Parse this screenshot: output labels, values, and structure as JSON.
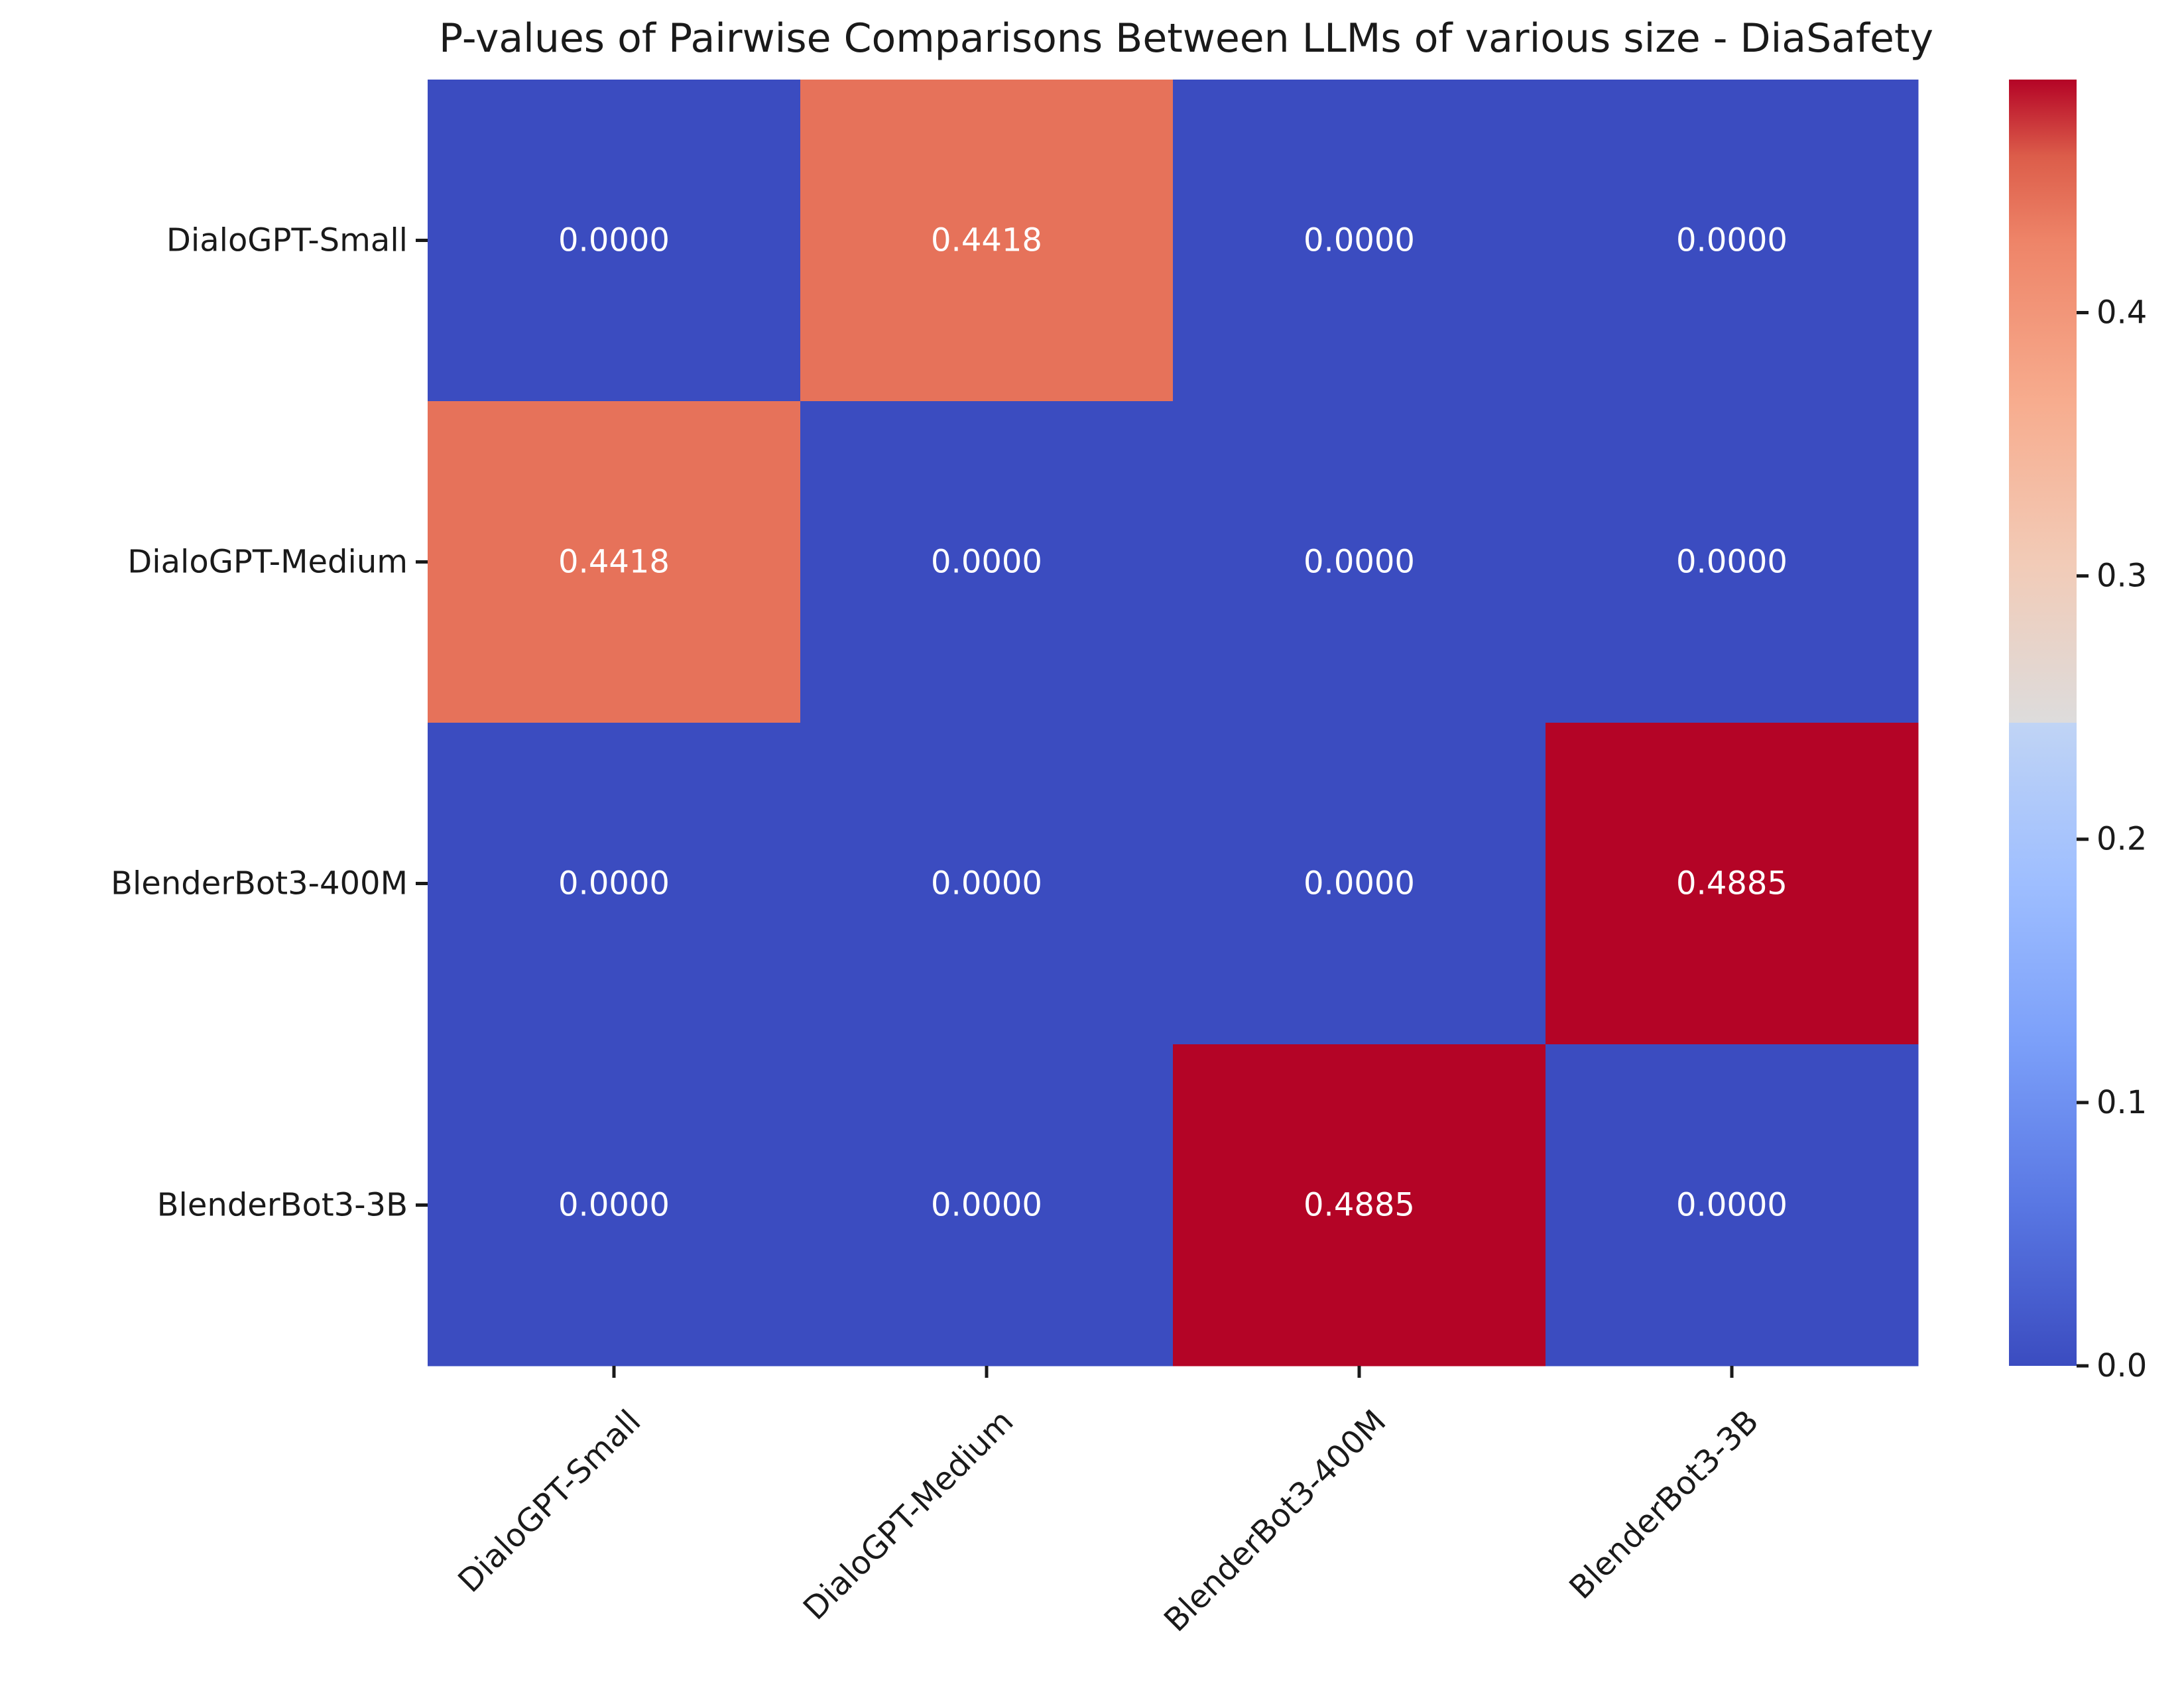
{
  "chart_data": {
    "type": "heatmap",
    "title": "P-values of Pairwise Comparisons Between LLMs of various size - DiaSafety",
    "row_labels": [
      "DialoGPT-Small",
      "DialoGPT-Medium",
      "BlenderBot3-400M",
      "BlenderBot3-3B"
    ],
    "col_labels": [
      "DialoGPT-Small",
      "DialoGPT-Medium",
      "BlenderBot3-400M",
      "BlenderBot3-3B"
    ],
    "values": [
      [
        0.0,
        0.4418,
        0.0,
        0.0
      ],
      [
        0.4418,
        0.0,
        0.0,
        0.0
      ],
      [
        0.0,
        0.0,
        0.0,
        0.4885
      ],
      [
        0.0,
        0.0,
        0.4885,
        0.0
      ]
    ],
    "cell_labels": [
      [
        "0.0000",
        "0.4418",
        "0.0000",
        "0.0000"
      ],
      [
        "0.4418",
        "0.0000",
        "0.0000",
        "0.0000"
      ],
      [
        "0.0000",
        "0.0000",
        "0.0000",
        "0.4885"
      ],
      [
        "0.0000",
        "0.0000",
        "0.4885",
        "0.0000"
      ]
    ],
    "colormap": "coolwarm",
    "color_range": [
      0.0,
      0.4885
    ],
    "colorbar": {
      "ticks": [
        0.0,
        0.1,
        0.2,
        0.3,
        0.4
      ],
      "tick_labels": [
        "0.0",
        "0.1",
        "0.2",
        "0.3",
        "0.4"
      ]
    },
    "xlabel": "",
    "ylabel": "",
    "grid": false
  }
}
